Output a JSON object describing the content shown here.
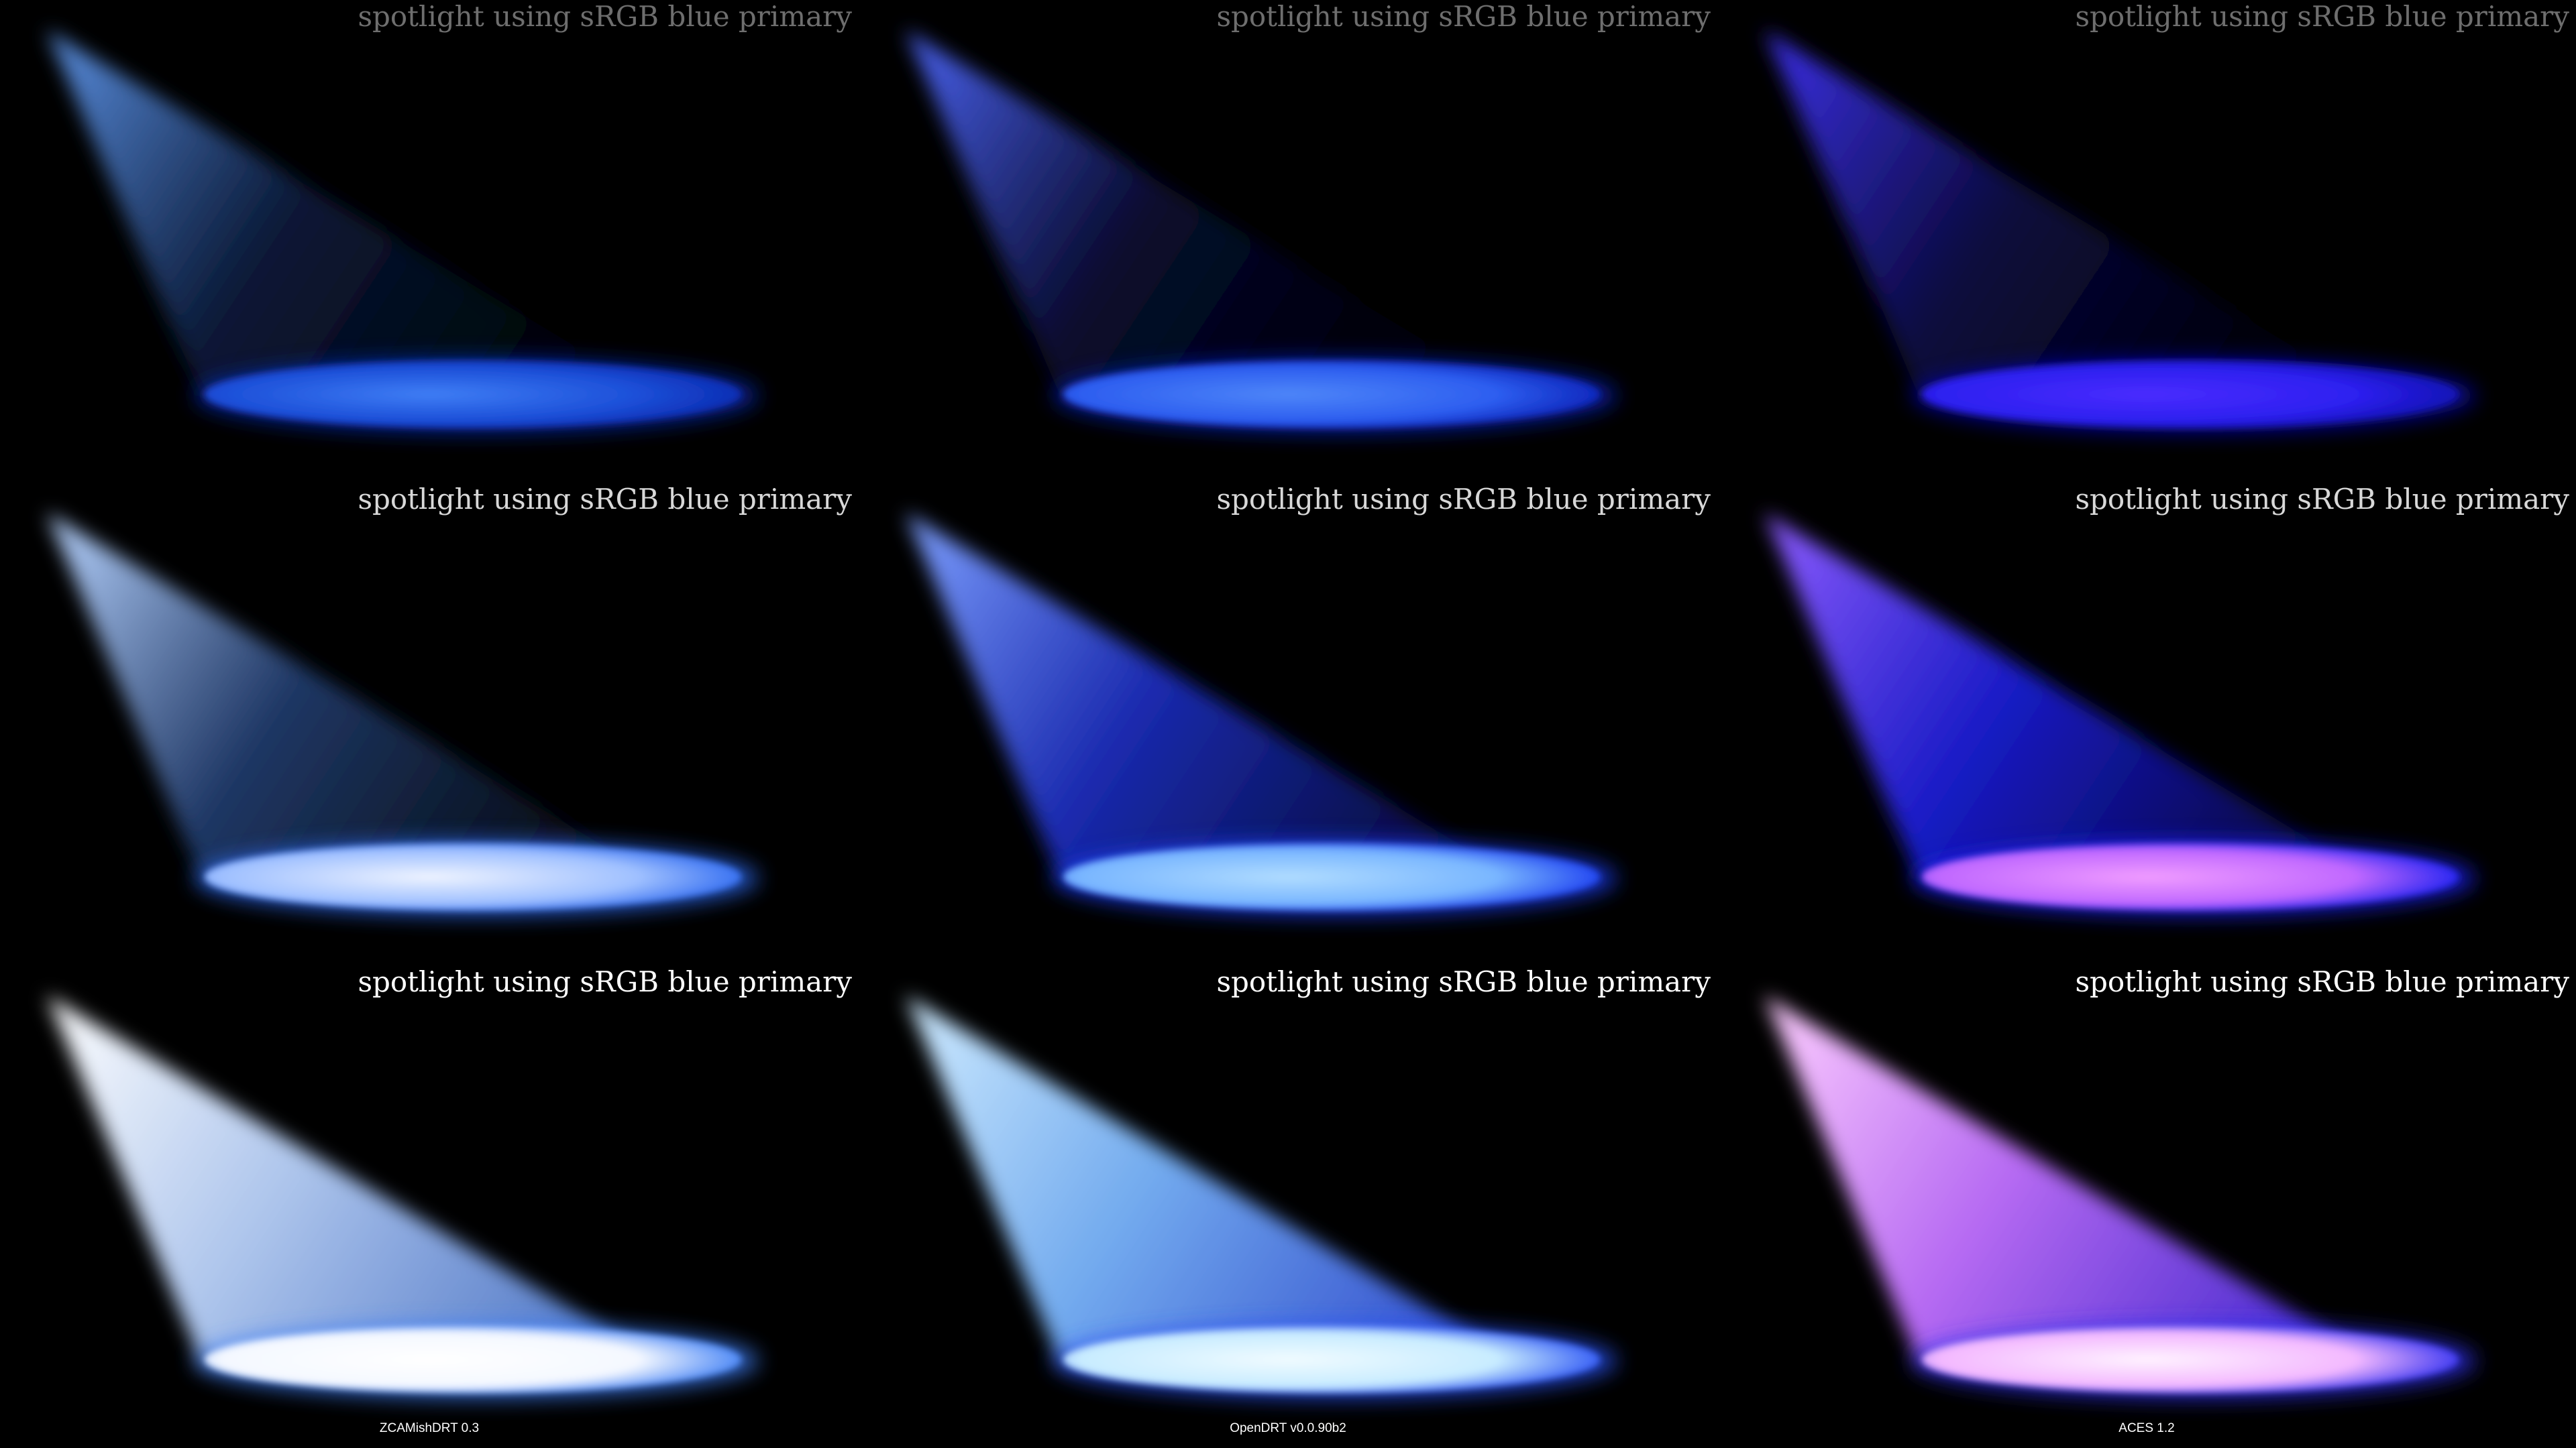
{
  "caption": "spotlight using sRGB blue primary",
  "columns": [
    {
      "label": "ZCAMishDRT 0.3",
      "rows": [
        {
          "beam_tip": "#5a8fe0",
          "beam_mid": "#0a1a3a",
          "beam_end": "#000000",
          "spot_center": "#3f7ef5",
          "spot_edge": "#1c4fd8",
          "spot_glow": "#0a2ab0"
        },
        {
          "beam_tip": "#b8d4ff",
          "beam_mid": "#203a6a",
          "beam_end": "#04080f",
          "spot_center": "#eef3ff",
          "spot_edge": "#9fc0ff",
          "spot_glow": "#2f6af0"
        },
        {
          "beam_tip": "#ffffff",
          "beam_mid": "#b6cff8",
          "beam_end": "#5c8ae8",
          "spot_center": "#ffffff",
          "spot_edge": "#f4f8ff",
          "spot_glow": "#3f7ff5"
        }
      ]
    },
    {
      "label": "OpenDRT v0.0.90b2",
      "rows": [
        {
          "beam_tip": "#4a62f0",
          "beam_mid": "#080a30",
          "beam_end": "#000000",
          "spot_center": "#4e86f8",
          "spot_edge": "#2d5ef0",
          "spot_glow": "#0b22b8"
        },
        {
          "beam_tip": "#7ea0ff",
          "beam_mid": "#1b2cb8",
          "beam_end": "#050a3a",
          "spot_center": "#b0dcff",
          "spot_edge": "#79b6ff",
          "spot_glow": "#1a3cf0"
        },
        {
          "beam_tip": "#d0ecff",
          "beam_mid": "#79b4fb",
          "beam_end": "#3a5af0",
          "spot_center": "#f0fbff",
          "spot_edge": "#c8ecff",
          "spot_glow": "#2a52f4"
        }
      ]
    },
    {
      "label": "ACES 1.2",
      "rows": [
        {
          "beam_tip": "#3c30e8",
          "beam_mid": "#0a0a40",
          "beam_end": "#000000",
          "spot_center": "#4a2cff",
          "spot_edge": "#2d20f0",
          "spot_glow": "#1010b0"
        },
        {
          "beam_tip": "#8e5cff",
          "beam_mid": "#1a1cd0",
          "beam_end": "#050640",
          "spot_center": "#f09cff",
          "spot_edge": "#c068ff",
          "spot_glow": "#1a20f0"
        },
        {
          "beam_tip": "#ffd0ff",
          "beam_mid": "#c070ff",
          "beam_end": "#5030f0",
          "spot_center": "#fff2ff",
          "spot_edge": "#f3b8ff",
          "spot_glow": "#3030f0"
        }
      ]
    }
  ],
  "caption_colors": [
    "#6e6e6e",
    "#d8d8d8",
    "#ffffff"
  ]
}
